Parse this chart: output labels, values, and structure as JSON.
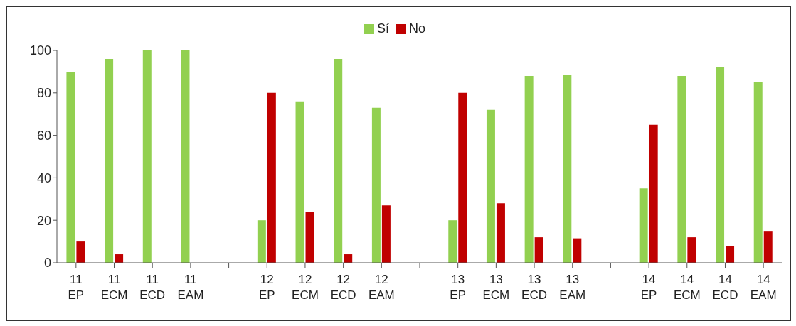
{
  "chart_data": {
    "type": "bar",
    "categories": [
      "11 EP",
      "11 ECM",
      "11 ECD",
      "11 EAM",
      null,
      "12 EP",
      "12 ECM",
      "12 ECD",
      "12 EAM",
      null,
      "13 EP",
      "13 ECM",
      "13 ECD",
      "13 EAM",
      null,
      "14 EP",
      "14 ECM",
      "14 ECD",
      "14 EAM"
    ],
    "series": [
      {
        "name": "Sí",
        "color": "#92d050",
        "values": [
          90,
          96,
          100,
          100,
          null,
          20,
          76,
          96,
          73,
          null,
          20,
          72,
          88,
          88.5,
          null,
          35,
          88,
          92,
          85
        ]
      },
      {
        "name": "No",
        "color": "#c00000",
        "values": [
          10,
          4,
          0,
          0,
          null,
          80,
          24,
          4,
          27,
          null,
          80,
          28,
          12,
          11.5,
          null,
          65,
          12,
          8,
          15
        ]
      }
    ],
    "ylim": [
      0,
      100
    ],
    "yticks": [
      0,
      20,
      40,
      60,
      80,
      100
    ],
    "legend": "top"
  }
}
